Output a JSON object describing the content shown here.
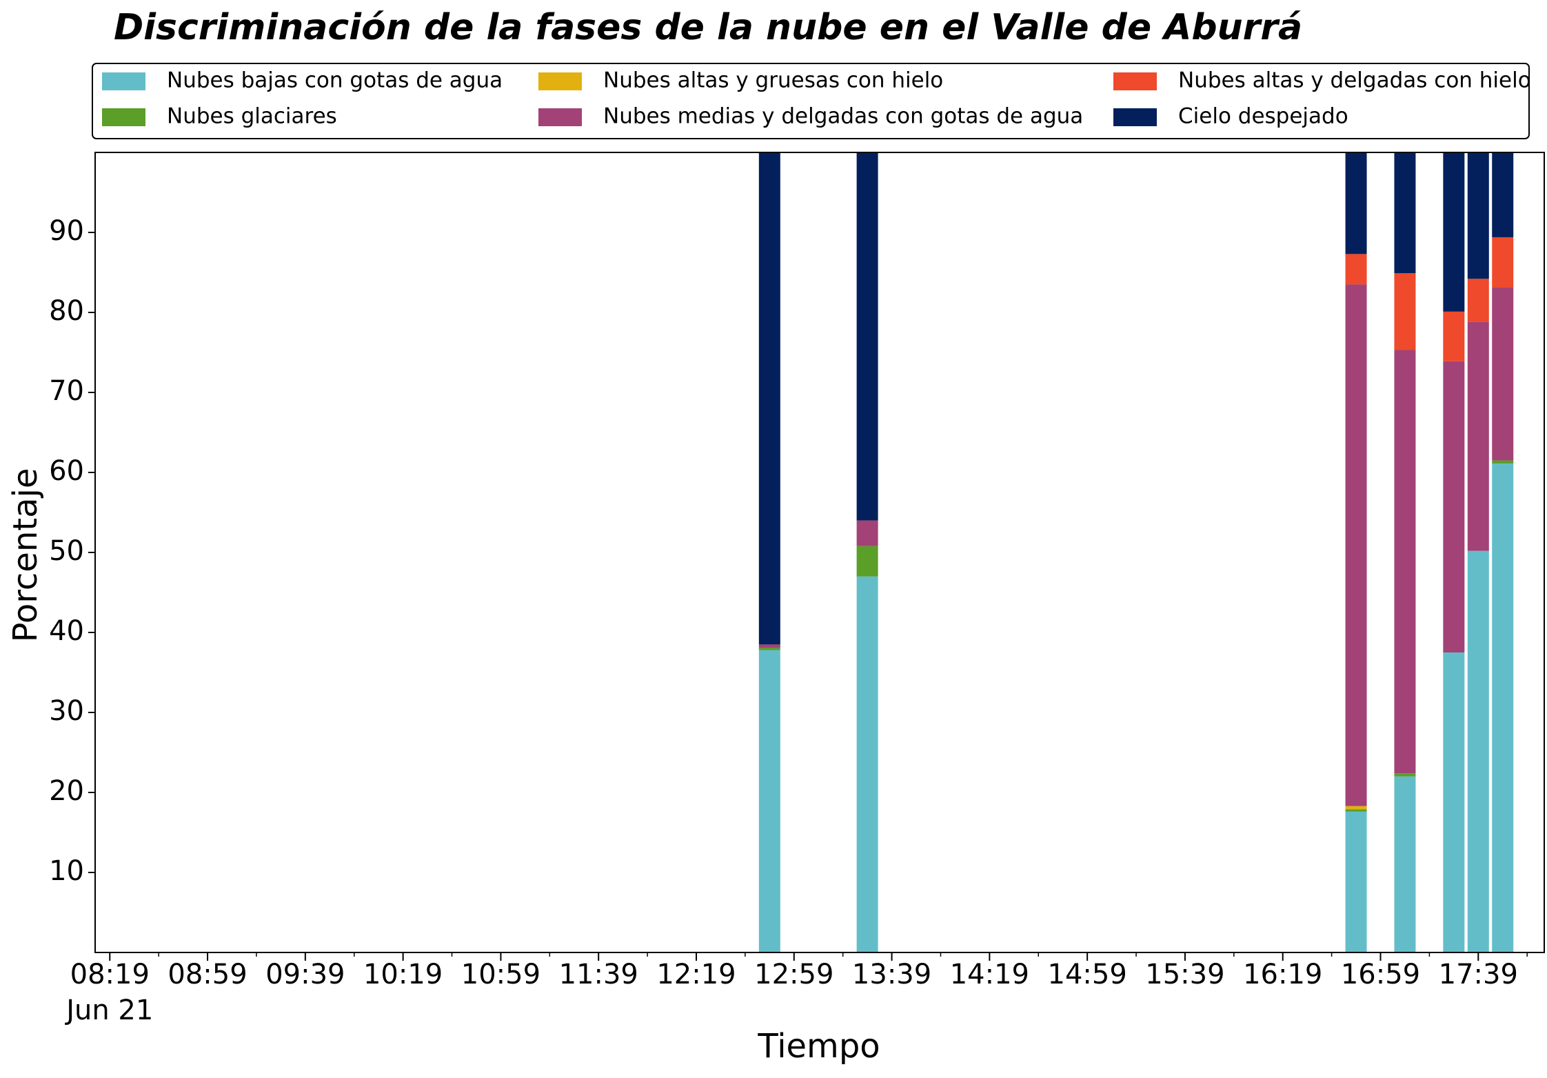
{
  "chart_data": {
    "type": "stacked_bar",
    "title": "Discriminación de la fases de la nube en el Valle de Aburrá",
    "x_label": "Tiempo",
    "y_label": "Porcentaje",
    "x": [
      "12:49",
      "13:29",
      "16:49",
      "17:09",
      "17:29",
      "17:39",
      "17:49"
    ],
    "xlim": [
      "08:13",
      "18:06"
    ],
    "xticks": [
      "08:19",
      "08:59",
      "09:39",
      "10:19",
      "10:59",
      "11:39",
      "12:19",
      "12:59",
      "13:39",
      "14:19",
      "14:59",
      "15:39",
      "16:19",
      "16:59",
      "17:39"
    ],
    "x_date_label": "Jun 21",
    "ylim": [
      0,
      100
    ],
    "yticks": [
      10,
      20,
      30,
      40,
      50,
      60,
      70,
      80,
      90
    ],
    "series": [
      {
        "name": "Nubes bajas con gotas de agua",
        "color": "#63bdc9",
        "values": [
          37.8,
          47.0,
          17.6,
          22.0,
          37.5,
          50.2,
          61.1
        ]
      },
      {
        "name": "Nubes glaciares",
        "color": "#5b9e28",
        "values": [
          0.3,
          3.8,
          0.3,
          0.4,
          0,
          0,
          0.4
        ]
      },
      {
        "name": "Nubes altas y gruesas con hielo",
        "color": "#e2b110",
        "values": [
          0,
          0,
          0.4,
          0,
          0,
          0,
          0
        ]
      },
      {
        "name": "Nubes medias y delgadas con gotas de agua",
        "color": "#a24276",
        "values": [
          0.4,
          3.2,
          65.2,
          52.9,
          36.4,
          28.6,
          21.6
        ]
      },
      {
        "name": "Nubes altas y delgadas con hielo",
        "color": "#ee4a2b",
        "values": [
          0,
          0,
          3.8,
          9.6,
          6.2,
          5.4,
          6.3
        ]
      },
      {
        "name": "Cielo despejado",
        "color": "#03205d",
        "values": [
          61.5,
          46.0,
          12.7,
          15.1,
          19.9,
          15.8,
          10.6
        ]
      }
    ],
    "legend": "top",
    "grid": false
  }
}
